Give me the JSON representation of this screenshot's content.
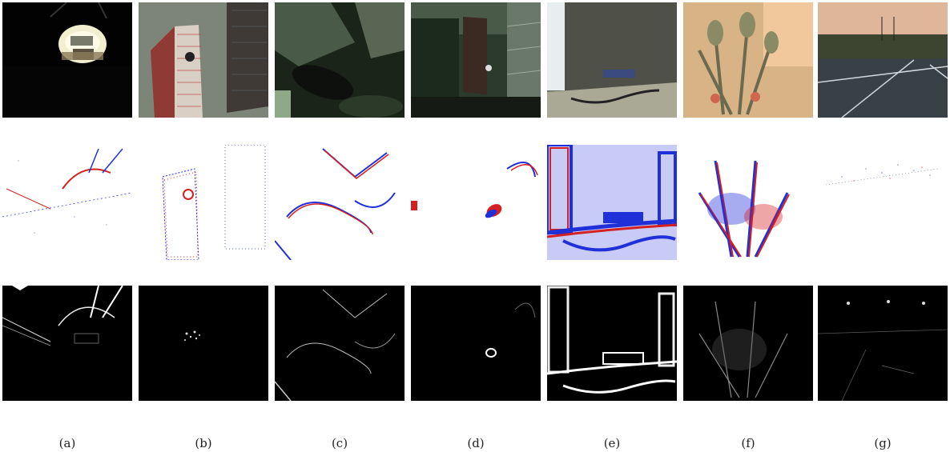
{
  "figure": {
    "captions": [
      "(a)",
      "(b)",
      "(c)",
      "(d)",
      "(e)",
      "(f)",
      "(g)"
    ]
  },
  "rows": [
    {
      "name": "rgb-frames"
    },
    {
      "name": "event-frames",
      "colors": {
        "positive": "#d42020",
        "negative": "#2030d8"
      }
    },
    {
      "name": "edge-maps"
    }
  ]
}
